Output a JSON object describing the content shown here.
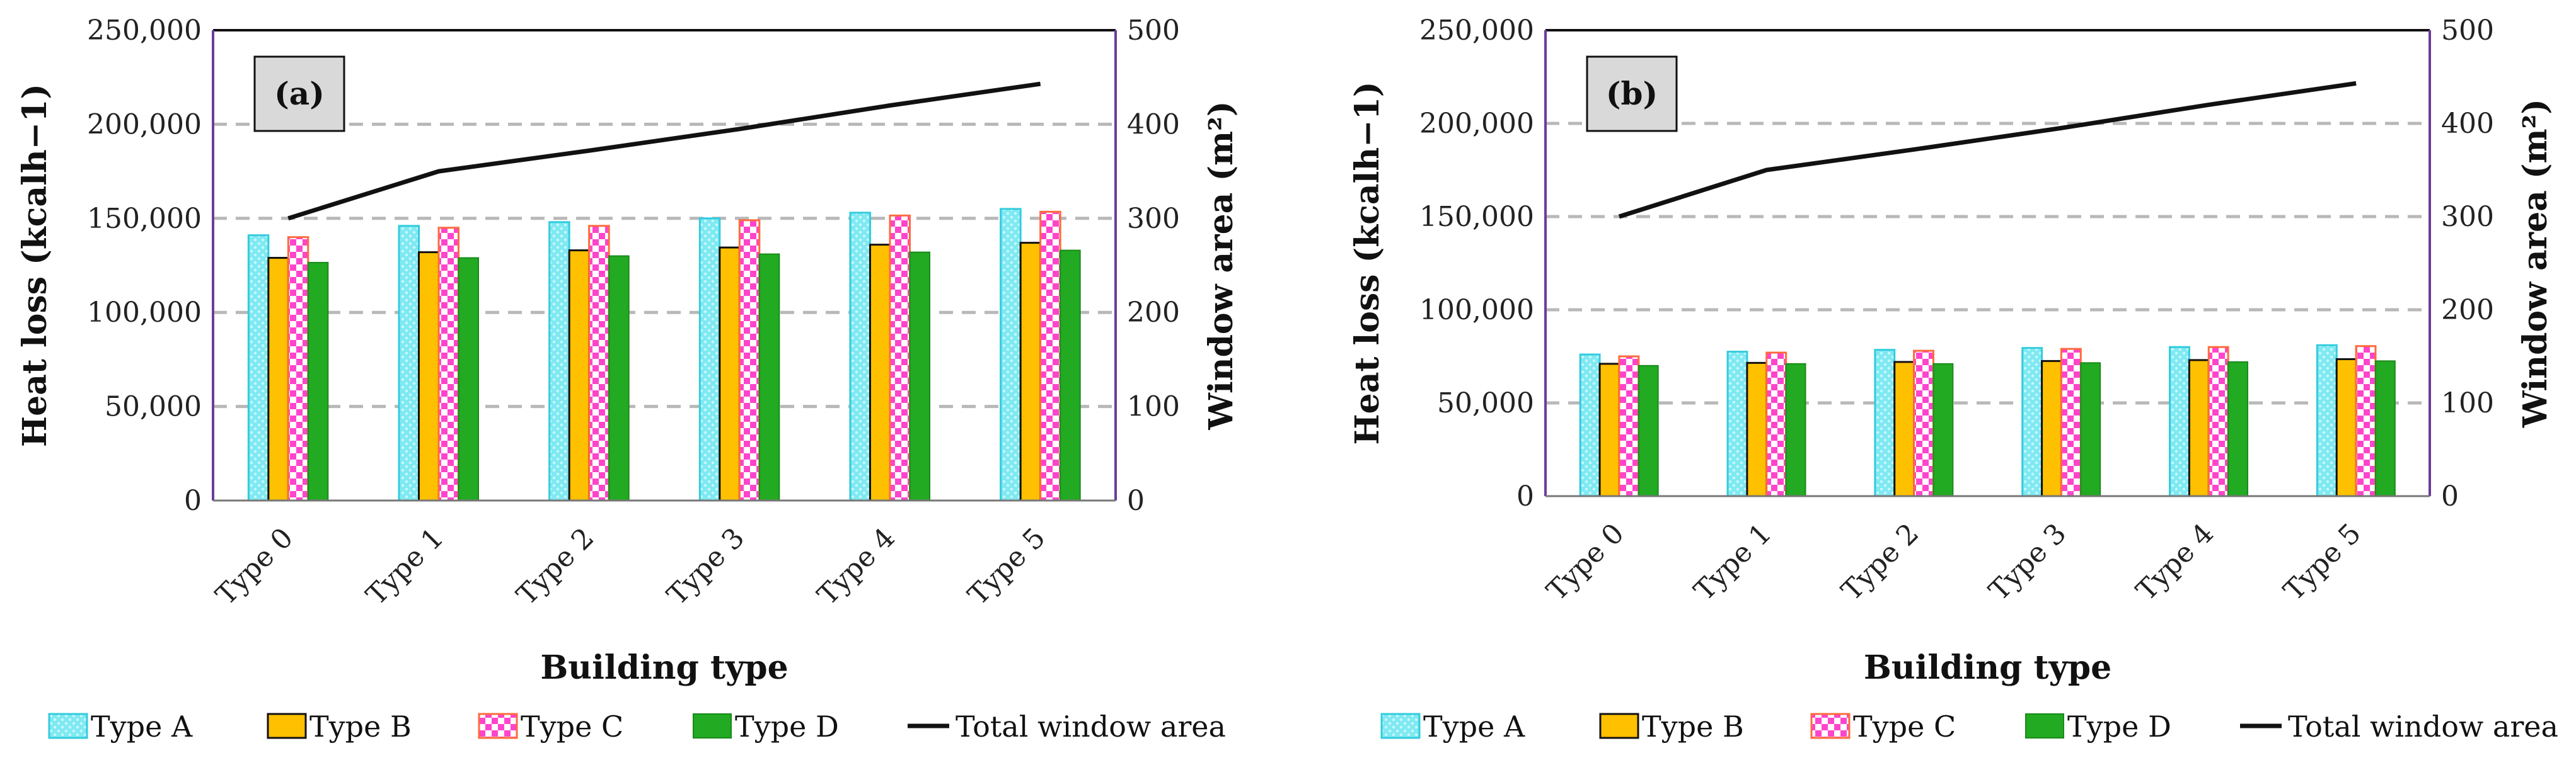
{
  "chart_data": [
    {
      "type": "bar",
      "panel_label": "(a)",
      "categories": [
        "Type 0",
        "Type 1",
        "Type 2",
        "Type 3",
        "Type 4",
        "Type 5"
      ],
      "series": [
        {
          "name": "Type A",
          "values": [
            141000,
            146000,
            148000,
            150000,
            153000,
            155000
          ]
        },
        {
          "name": "Type B",
          "values": [
            129000,
            132000,
            133000,
            134500,
            136000,
            137000
          ]
        },
        {
          "name": "Type C",
          "values": [
            140000,
            145000,
            146000,
            149000,
            151500,
            153500
          ]
        },
        {
          "name": "Type D",
          "values": [
            126500,
            129000,
            130000,
            131000,
            132000,
            133000
          ]
        }
      ],
      "line_series": {
        "name": "Total window area",
        "axis": "right",
        "values": [
          300,
          350,
          372,
          395,
          420,
          443
        ]
      },
      "xlabel": "Building type",
      "ylabel": "Heat loss (kcalh−1)",
      "y2label": "Window area (m²)",
      "ylim": [
        0,
        250000
      ],
      "y2lim": [
        0,
        500
      ],
      "yticks": [
        "0",
        "50,000",
        "100,000",
        "150,000",
        "200,000",
        "250,000"
      ],
      "y2ticks": [
        "0",
        "100",
        "200",
        "300",
        "400",
        "500"
      ],
      "grid": true,
      "legend": "bottom"
    },
    {
      "type": "bar",
      "panel_label": "(b)",
      "categories": [
        "Type 0",
        "Type 1",
        "Type 2",
        "Type 3",
        "Type 4",
        "Type 5"
      ],
      "series": [
        {
          "name": "Type A",
          "values": [
            76000,
            77500,
            78500,
            79500,
            80000,
            81000
          ]
        },
        {
          "name": "Type B",
          "values": [
            71000,
            71500,
            72000,
            72500,
            73000,
            73500
          ]
        },
        {
          "name": "Type C",
          "values": [
            75000,
            77000,
            78000,
            79000,
            80000,
            80500
          ]
        },
        {
          "name": "Type D",
          "values": [
            70000,
            71000,
            71000,
            71500,
            72000,
            72500
          ]
        }
      ],
      "line_series": {
        "name": "Total window area",
        "axis": "right",
        "values": [
          300,
          350,
          372,
          395,
          420,
          443
        ]
      },
      "xlabel": "Building type",
      "ylabel": "Heat loss (kcalh−1)",
      "y2label": "Window area (m²)",
      "ylim": [
        0,
        250000
      ],
      "y2lim": [
        0,
        500
      ],
      "yticks": [
        "0",
        "50,000",
        "100,000",
        "150,000",
        "200,000",
        "250,000"
      ],
      "y2ticks": [
        "0",
        "100",
        "200",
        "300",
        "400",
        "500"
      ],
      "grid": true,
      "legend": "bottom"
    }
  ],
  "colors": {
    "type_a_fill": "#7fe9f2",
    "type_a_dot": "#c8f7fb",
    "type_a_edge": "#33ccdd",
    "type_b_fill": "#ffc000",
    "type_b_edge": "#111111",
    "type_c_fill": "#ff44cc",
    "type_c_check": "#ffffff",
    "type_c_edge": "#ff6a3d",
    "type_d_fill": "#22aa22",
    "type_d_edge": "#1a8a1a",
    "line": "#111111",
    "grid": "#b8b8b8",
    "axis": "#6a3d9a",
    "label_box": "#d9d9d9"
  }
}
